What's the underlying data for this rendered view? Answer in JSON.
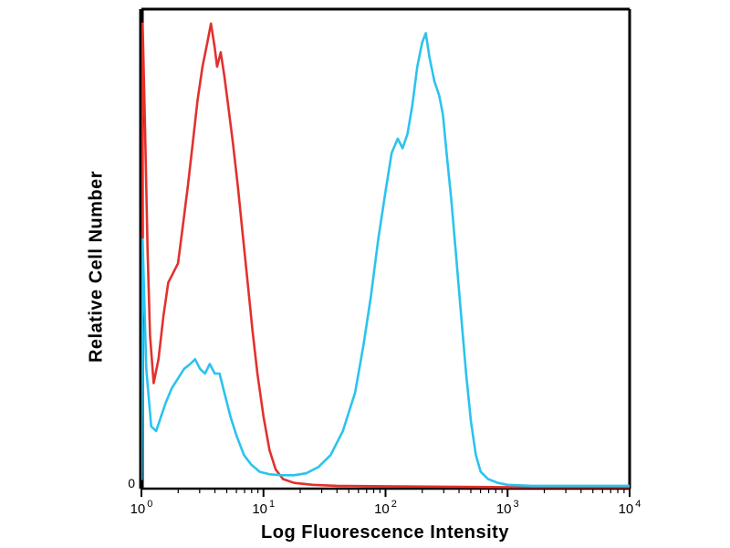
{
  "chart_data": {
    "type": "line",
    "title": "",
    "xlabel": "Log Fluorescence Intensity",
    "ylabel": "Relative Cell Number",
    "x_scale": "log10",
    "x_range_log10": [
      0,
      4
    ],
    "y_range": [
      0,
      1
    ],
    "x_tick_base": "10",
    "x_tick_exponents": [
      "0",
      "1",
      "2",
      "3",
      "4"
    ],
    "y_tick_labels": [
      "0"
    ],
    "grid": false,
    "legend": "none",
    "frame_color": "#000000",
    "series": [
      {
        "name": "red-curve",
        "color": "#e2312d",
        "points": [
          [
            0.0,
            0.02
          ],
          [
            0.01,
            0.97
          ],
          [
            0.03,
            0.75
          ],
          [
            0.05,
            0.5
          ],
          [
            0.07,
            0.32
          ],
          [
            0.1,
            0.22
          ],
          [
            0.14,
            0.27
          ],
          [
            0.18,
            0.36
          ],
          [
            0.22,
            0.43
          ],
          [
            0.26,
            0.45
          ],
          [
            0.3,
            0.47
          ],
          [
            0.34,
            0.55
          ],
          [
            0.38,
            0.63
          ],
          [
            0.42,
            0.72
          ],
          [
            0.46,
            0.81
          ],
          [
            0.5,
            0.88
          ],
          [
            0.54,
            0.93
          ],
          [
            0.57,
            0.97
          ],
          [
            0.6,
            0.92
          ],
          [
            0.62,
            0.88
          ],
          [
            0.65,
            0.91
          ],
          [
            0.68,
            0.86
          ],
          [
            0.71,
            0.8
          ],
          [
            0.75,
            0.72
          ],
          [
            0.79,
            0.63
          ],
          [
            0.83,
            0.53
          ],
          [
            0.87,
            0.43
          ],
          [
            0.91,
            0.33
          ],
          [
            0.95,
            0.24
          ],
          [
            1.0,
            0.15
          ],
          [
            1.05,
            0.08
          ],
          [
            1.1,
            0.04
          ],
          [
            1.16,
            0.02
          ],
          [
            1.25,
            0.012
          ],
          [
            1.4,
            0.008
          ],
          [
            1.6,
            0.006
          ],
          [
            2.0,
            0.005
          ],
          [
            2.5,
            0.004
          ],
          [
            3.0,
            0.003
          ],
          [
            3.5,
            0.003
          ],
          [
            4.0,
            0.003
          ]
        ]
      },
      {
        "name": "cyan-curve",
        "color": "#2bc3ee",
        "points": [
          [
            0.0,
            0.02
          ],
          [
            0.01,
            0.52
          ],
          [
            0.04,
            0.25
          ],
          [
            0.08,
            0.13
          ],
          [
            0.12,
            0.12
          ],
          [
            0.16,
            0.15
          ],
          [
            0.2,
            0.18
          ],
          [
            0.25,
            0.21
          ],
          [
            0.3,
            0.23
          ],
          [
            0.35,
            0.25
          ],
          [
            0.4,
            0.26
          ],
          [
            0.44,
            0.27
          ],
          [
            0.48,
            0.25
          ],
          [
            0.52,
            0.24
          ],
          [
            0.56,
            0.26
          ],
          [
            0.6,
            0.24
          ],
          [
            0.64,
            0.24
          ],
          [
            0.68,
            0.2
          ],
          [
            0.73,
            0.15
          ],
          [
            0.78,
            0.11
          ],
          [
            0.84,
            0.07
          ],
          [
            0.9,
            0.05
          ],
          [
            0.97,
            0.035
          ],
          [
            1.05,
            0.03
          ],
          [
            1.15,
            0.028
          ],
          [
            1.25,
            0.028
          ],
          [
            1.35,
            0.032
          ],
          [
            1.45,
            0.045
          ],
          [
            1.55,
            0.07
          ],
          [
            1.65,
            0.12
          ],
          [
            1.75,
            0.2
          ],
          [
            1.82,
            0.3
          ],
          [
            1.88,
            0.4
          ],
          [
            1.94,
            0.52
          ],
          [
            2.0,
            0.62
          ],
          [
            2.05,
            0.7
          ],
          [
            2.1,
            0.73
          ],
          [
            2.14,
            0.71
          ],
          [
            2.18,
            0.74
          ],
          [
            2.22,
            0.8
          ],
          [
            2.26,
            0.88
          ],
          [
            2.3,
            0.93
          ],
          [
            2.33,
            0.95
          ],
          [
            2.36,
            0.9
          ],
          [
            2.4,
            0.85
          ],
          [
            2.44,
            0.82
          ],
          [
            2.47,
            0.78
          ],
          [
            2.5,
            0.7
          ],
          [
            2.54,
            0.6
          ],
          [
            2.58,
            0.48
          ],
          [
            2.62,
            0.36
          ],
          [
            2.66,
            0.24
          ],
          [
            2.7,
            0.14
          ],
          [
            2.74,
            0.07
          ],
          [
            2.78,
            0.035
          ],
          [
            2.84,
            0.02
          ],
          [
            2.92,
            0.012
          ],
          [
            3.0,
            0.008
          ],
          [
            3.2,
            0.006
          ],
          [
            3.5,
            0.006
          ],
          [
            4.0,
            0.006
          ]
        ]
      }
    ]
  }
}
